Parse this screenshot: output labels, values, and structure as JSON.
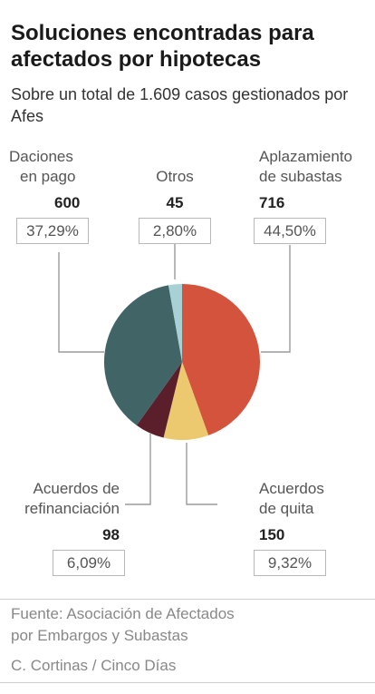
{
  "header": {
    "title": "Soluciones encontradas para afectados por hipotecas",
    "subtitle": "Sobre un total de 1.609 casos gestionados por Afes"
  },
  "chart_data": {
    "type": "pie",
    "title": "Soluciones encontradas para afectados por hipotecas",
    "subtitle": "Sobre un total de 1.609 casos gestionados por Afes",
    "total": 1609,
    "slices": [
      {
        "label_lines": [
          "Aplazamiento",
          "de subastas"
        ],
        "value": 716,
        "value_label": "716",
        "percent": 44.5,
        "percent_label": "44,50%",
        "color": "#d4533c"
      },
      {
        "label_lines": [
          "Acuerdos",
          "de quita"
        ],
        "value": 150,
        "value_label": "150",
        "percent": 9.32,
        "percent_label": "9,32%",
        "color": "#ecc96f"
      },
      {
        "label_lines": [
          "Acuerdos de",
          "refinanciación"
        ],
        "value": 98,
        "value_label": "98",
        "percent": 6.09,
        "percent_label": "6,09%",
        "color": "#5b1f2c"
      },
      {
        "label_lines": [
          "Daciones",
          "en pago"
        ],
        "value": 600,
        "value_label": "600",
        "percent": 37.29,
        "percent_label": "37,29%",
        "color": "#416466"
      },
      {
        "label_lines": [
          "Otros"
        ],
        "value": 45,
        "value_label": "45",
        "percent": 2.8,
        "percent_label": "2,80%",
        "color": "#a8d1d5"
      }
    ]
  },
  "footer": {
    "source_lines": [
      "Fuente: Asociación de Afectados",
      "por Embargos y Subastas"
    ],
    "credit": "C. Cortinas / Cinco Días"
  }
}
